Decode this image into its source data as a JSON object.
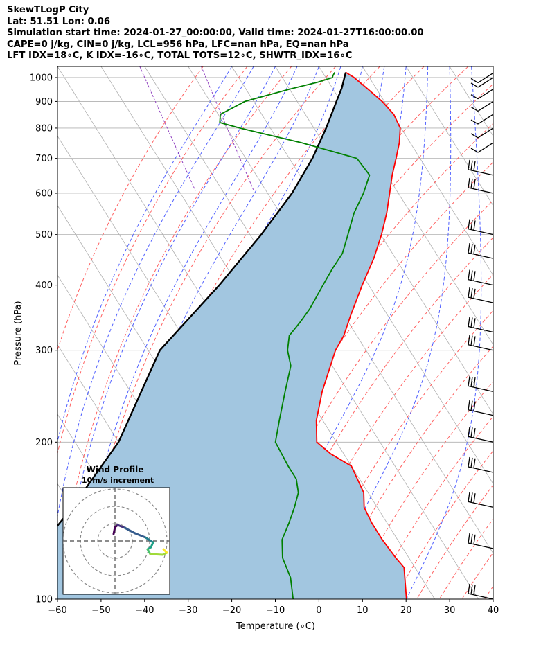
{
  "header": {
    "line1": "SkewTLogP City",
    "line2": "Lat: 51.51   Lon: 0.06",
    "line3": "Simulation start time: 2024-01-27_00:00:00, Valid time: 2024-01-27T16:00:00.00",
    "line4": "CAPE=0 j/kg, CIN=0 j/kg, LCL=956 hPa, LFC=nan hPa, EQ=nan hPa",
    "line5": "LFT IDX=18∘C, K IDX=-16∘C, TOTAL TOTS=12∘C, SHWTR_IDX=16∘C"
  },
  "colors": {
    "temperature": "#ff0000",
    "dewpoint": "#008000",
    "parcel": "#000000",
    "fill": "#a2c6e0",
    "dry_adiabat": "#ff6060",
    "moist_adiabat": "#5060ff",
    "mixing_ratio": "#9040c0",
    "isotherm": "#b0b0b0"
  },
  "chart_data": [
    {
      "type": "line",
      "subtype": "skew-T log-P",
      "xlabel": "Temperature (∘C)",
      "ylabel": "Pressure (hPa)",
      "xlim": [
        -60,
        40
      ],
      "ylim": [
        1050,
        100
      ],
      "y_scale": "log",
      "skew_per_log_decade_C": 75,
      "x_ticks": [
        -60,
        -50,
        -40,
        -30,
        -20,
        -10,
        0,
        10,
        20,
        30,
        40
      ],
      "y_ticks": [
        1000,
        900,
        800,
        700,
        600,
        500,
        400,
        300,
        200,
        100
      ],
      "grid": true,
      "series": [
        {
          "role": "temperature",
          "points": [
            [
              1023,
              5.3
            ],
            [
              1000,
              6.5
            ],
            [
              950,
              8.0
            ],
            [
              900,
              9.5
            ],
            [
              850,
              10.3
            ],
            [
              800,
              9.8
            ],
            [
              750,
              7.5
            ],
            [
              700,
              4.5
            ],
            [
              650,
              1.2
            ],
            [
              600,
              -2.0
            ],
            [
              550,
              -5.5
            ],
            [
              500,
              -9.8
            ],
            [
              450,
              -15.0
            ],
            [
              400,
              -21.5
            ],
            [
              350,
              -28.5
            ],
            [
              320,
              -33.0
            ],
            [
              300,
              -37.0
            ],
            [
              250,
              -46.0
            ],
            [
              220,
              -51.5
            ],
            [
              200,
              -54.5
            ],
            [
              190,
              -53.0
            ],
            [
              180,
              -50.0
            ],
            [
              160,
              -51.0
            ],
            [
              150,
              -53.0
            ],
            [
              140,
              -53.5
            ],
            [
              130,
              -53.5
            ],
            [
              120,
              -53.0
            ],
            [
              115,
              -52.5
            ],
            [
              100,
              -56.5
            ]
          ]
        },
        {
          "role": "dewpoint",
          "points": [
            [
              1023,
              2.8
            ],
            [
              1010,
              2.0
            ],
            [
              1000,
              1.5
            ],
            [
              980,
              -2.5
            ],
            [
              950,
              -10.0
            ],
            [
              900,
              -22.0
            ],
            [
              850,
              -29.5
            ],
            [
              820,
              -30.8
            ],
            [
              800,
              -27.0
            ],
            [
              750,
              -15.0
            ],
            [
              700,
              -4.5
            ],
            [
              650,
              -4.0
            ],
            [
              600,
              -8.0
            ],
            [
              550,
              -13.0
            ],
            [
              500,
              -17.5
            ],
            [
              460,
              -21.5
            ],
            [
              430,
              -26.0
            ],
            [
              400,
              -30.5
            ],
            [
              360,
              -37.0
            ],
            [
              340,
              -41.0
            ],
            [
              320,
              -45.5
            ],
            [
              300,
              -48.0
            ],
            [
              280,
              -49.5
            ],
            [
              250,
              -54.5
            ],
            [
              220,
              -60.0
            ],
            [
              200,
              -64.0
            ],
            [
              180,
              -64.5
            ],
            [
              170,
              -64.5
            ],
            [
              160,
              -66.0
            ],
            [
              150,
              -69.0
            ],
            [
              140,
              -72.5
            ],
            [
              130,
              -76.5
            ],
            [
              120,
              -79.0
            ],
            [
              110,
              -80.0
            ],
            [
              100,
              -82.5
            ]
          ]
        },
        {
          "role": "parcel",
          "points": [
            [
              1023,
              5.3
            ],
            [
              990,
              3.8
            ],
            [
              956,
              2.2
            ],
            [
              900,
              -1.0
            ],
            [
              850,
              -4.0
            ],
            [
              800,
              -7.2
            ],
            [
              700,
              -14.7
            ],
            [
              600,
              -24.4
            ],
            [
              500,
              -37.4
            ],
            [
              400,
              -54.3
            ],
            [
              300,
              -77.3
            ],
            [
              200,
              -100.0
            ],
            [
              150,
              -120.0
            ],
            [
              100,
              -150.0
            ]
          ]
        }
      ],
      "barbs_pressure_hPa": [
        100,
        125,
        150,
        175,
        200,
        225,
        250,
        300,
        325,
        370,
        400,
        450,
        500,
        600,
        650,
        750,
        800,
        850,
        900,
        950,
        1000,
        1020
      ],
      "hodograph": {
        "title": "Wind Profile",
        "subtitle": "10m/s increment",
        "rings": 3,
        "colormap": "viridis"
      }
    }
  ]
}
